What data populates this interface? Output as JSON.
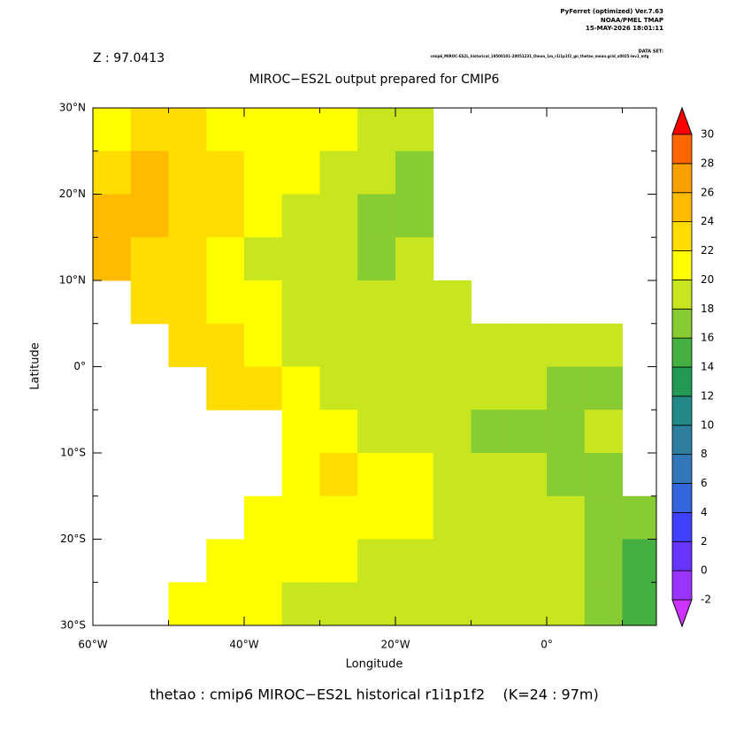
{
  "chart_data": {
    "type": "heatmap",
    "annotations": [
      "PyFerret (optimized) Ver.7.63",
      "NOAA/PMEL TMAP",
      "15-MAY-2026 18:01:11"
    ],
    "dataset_label": "DATA SET:",
    "dataset": "cmip6_MIROC-ES2L_historical_19500101-20051231_Omon_1m_r1i1p1f2_gn_thetao_mean.grid_x0025-lev1_mfg",
    "z_label": "Z : 97.0413",
    "title": "MIROC−ES2L output prepared for CMIP6",
    "xlabel": "Longitude",
    "ylabel": "Latitude",
    "caption": "thetao : cmip6 MIROC−ES2L historical r1i1p1f2    (K=24 : 97m)",
    "xlim": [
      -60,
      14.5
    ],
    "ylim": [
      -30,
      30
    ],
    "xticks": [
      {
        "value": -60,
        "label": "60°W"
      },
      {
        "value": -40,
        "label": "40°W"
      },
      {
        "value": -20,
        "label": "20°W"
      },
      {
        "value": 0,
        "label": "0°"
      }
    ],
    "xticks_minor": [
      -50,
      -30,
      -10,
      10
    ],
    "yticks": [
      {
        "value": -30,
        "label": "30°S"
      },
      {
        "value": -20,
        "label": "20°S"
      },
      {
        "value": -10,
        "label": "10°S"
      },
      {
        "value": 0,
        "label": "0°"
      },
      {
        "value": 10,
        "label": "10°N"
      },
      {
        "value": 20,
        "label": "20°N"
      },
      {
        "value": 30,
        "label": "30°N"
      }
    ],
    "yticks_minor": [
      -25,
      -15,
      -5,
      5,
      15,
      25
    ],
    "x": [
      -57.5,
      -52.5,
      -47.5,
      -42.5,
      -37.5,
      -32.5,
      -27.5,
      -22.5,
      -17.5,
      -12.5,
      -7.5,
      -2.5,
      2.5,
      7.5,
      12.5
    ],
    "y": [
      27.5,
      22.5,
      17.5,
      12.5,
      7.5,
      2.5,
      -2.5,
      -7.5,
      -12.5,
      -17.5,
      -22.5,
      -27.5
    ],
    "z": [
      [
        21,
        22,
        22,
        21,
        21,
        20,
        20,
        19,
        18.5,
        null,
        null,
        null,
        null,
        null,
        null
      ],
      [
        23,
        24,
        23.5,
        22,
        21,
        20,
        19,
        18,
        17,
        null,
        null,
        null,
        null,
        null,
        null
      ],
      [
        25,
        24.5,
        23,
        22,
        20.5,
        19,
        18,
        17.5,
        17,
        null,
        null,
        null,
        null,
        null,
        null
      ],
      [
        24,
        23,
        22.5,
        20.5,
        19.5,
        19,
        18,
        17.5,
        18,
        null,
        null,
        null,
        null,
        null,
        null
      ],
      [
        null,
        22,
        23,
        21,
        20,
        19,
        18.5,
        18.5,
        18.5,
        18.5,
        null,
        null,
        null,
        null,
        null
      ],
      [
        null,
        null,
        23.5,
        22.5,
        20.5,
        19.5,
        18.5,
        18.5,
        18,
        18,
        18,
        18.5,
        18.5,
        18.5,
        null
      ],
      [
        null,
        null,
        null,
        23.5,
        22,
        20.5,
        19,
        18.5,
        18.5,
        18,
        18,
        18,
        17.5,
        17.5,
        null
      ],
      [
        null,
        null,
        null,
        null,
        null,
        21,
        20,
        19.5,
        18.5,
        18,
        17,
        17,
        17.5,
        18,
        null
      ],
      [
        null,
        null,
        null,
        null,
        null,
        21.5,
        22,
        21.5,
        20,
        19,
        18.5,
        18,
        17.5,
        17,
        null
      ],
      [
        null,
        null,
        null,
        null,
        21,
        21.5,
        21,
        20.5,
        20,
        19.5,
        19,
        19,
        18.5,
        17,
        16.5
      ],
      [
        null,
        null,
        null,
        21,
        21,
        20.5,
        20,
        19.5,
        19,
        19,
        18.5,
        18.5,
        18,
        17,
        15.5
      ],
      [
        null,
        null,
        21,
        20.5,
        20,
        19.5,
        19,
        19,
        18.5,
        18.5,
        18.5,
        18.5,
        18,
        16.5,
        15.5
      ]
    ],
    "levels": [
      -2,
      0,
      2,
      4,
      6,
      8,
      10,
      12,
      14,
      16,
      18,
      20,
      22,
      24,
      26,
      28,
      30
    ],
    "colors": [
      "#cc33ff",
      "#9933ff",
      "#6633ff",
      "#4040ff",
      "#3366dd",
      "#3377bb",
      "#2e7ea0",
      "#228888",
      "#229955",
      "#44b040",
      "#88cc33",
      "#c8e620",
      "#ffff00",
      "#ffdd00",
      "#ffbb00",
      "#f7a000",
      "#ff6600",
      "#ff0000"
    ]
  }
}
